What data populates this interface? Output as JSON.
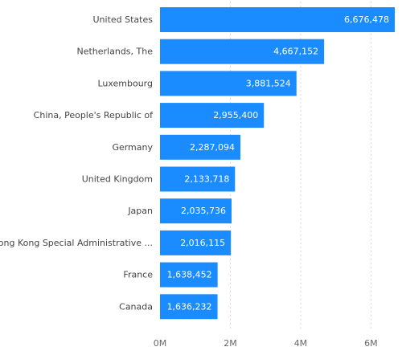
{
  "chart_data": {
    "type": "bar",
    "orientation": "horizontal",
    "title": "",
    "xlabel": "",
    "ylabel": "",
    "categories": [
      "United States",
      "Netherlands, The",
      "Luxembourg",
      "China, People's Republic of",
      "Germany",
      "United Kingdom",
      "Japan",
      "Hong Kong Special Administrative ...",
      "France",
      "Canada"
    ],
    "values": [
      6676478,
      4667152,
      3881524,
      2955400,
      2287094,
      2133718,
      2035736,
      2016115,
      1638452,
      1636232
    ],
    "value_labels": [
      "6,676,478",
      "4,667,152",
      "3,881,524",
      "2,955,400",
      "2,287,094",
      "2,133,718",
      "2,035,736",
      "2,016,115",
      "1,638,452",
      "1,636,232"
    ],
    "xlim": [
      0,
      6676478
    ],
    "x_ticks": [
      0,
      2000000,
      4000000,
      6000000
    ],
    "x_tick_labels": [
      "0M",
      "2M",
      "4M",
      "6M"
    ],
    "grid": true,
    "legend": "none",
    "bar_color": "#1a8cff"
  }
}
